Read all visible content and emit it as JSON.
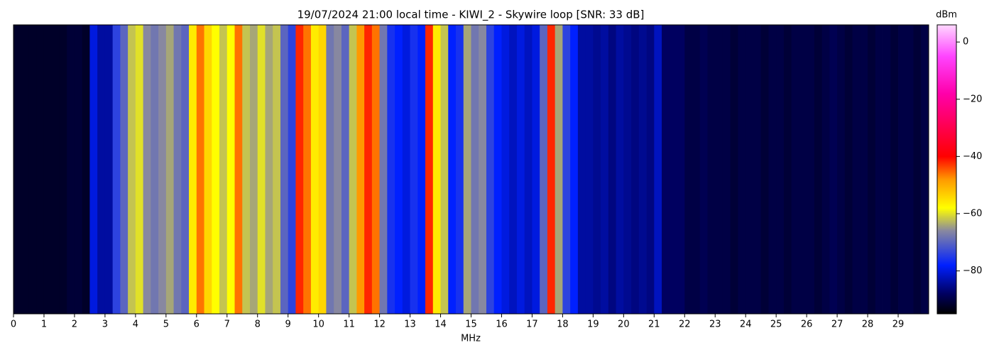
{
  "chart_data": {
    "type": "spectrum-strips",
    "title": "19/07/2024 21:00 local time - KIWI_2 - Skywire loop [SNR: 33 dB]",
    "xlabel": "MHz",
    "colorbar_label": "dBm",
    "xlim": [
      0,
      30
    ],
    "xticks": [
      0,
      1,
      2,
      3,
      4,
      5,
      6,
      7,
      8,
      9,
      10,
      11,
      12,
      13,
      14,
      15,
      16,
      17,
      18,
      19,
      20,
      21,
      22,
      23,
      24,
      25,
      26,
      27,
      28,
      29
    ],
    "zlim": [
      -95,
      6
    ],
    "zticks": [
      {
        "value": 0,
        "label": "0"
      },
      {
        "value": -20,
        "label": "−20"
      },
      {
        "value": -40,
        "label": "−40"
      },
      {
        "value": -60,
        "label": "−60"
      },
      {
        "value": -80,
        "label": "−80"
      }
    ],
    "colorscale": [
      {
        "value": -95,
        "color": "#000000"
      },
      {
        "value": -88,
        "color": "#000060"
      },
      {
        "value": -78,
        "color": "#0020ff"
      },
      {
        "value": -66,
        "color": "#8888a0"
      },
      {
        "value": -58,
        "color": "#ffff00"
      },
      {
        "value": -48,
        "color": "#ff9900"
      },
      {
        "value": -40,
        "color": "#ff0000"
      },
      {
        "value": -18,
        "color": "#ff00aa"
      },
      {
        "value": -5,
        "color": "#ff44ff"
      },
      {
        "value": 6,
        "color": "#ffd8ff"
      }
    ],
    "bins": [
      0,
      0.25,
      0.5,
      0.75,
      1,
      1.25,
      1.5,
      1.75,
      2,
      2.25,
      2.5,
      2.75,
      3,
      3.25,
      3.5,
      3.75,
      4,
      4.25,
      4.5,
      4.75,
      5,
      5.25,
      5.5,
      5.75,
      6,
      6.25,
      6.5,
      6.75,
      7,
      7.25,
      7.5,
      7.75,
      8,
      8.25,
      8.5,
      8.75,
      9,
      9.25,
      9.5,
      9.75,
      10,
      10.25,
      10.5,
      10.75,
      11,
      11.25,
      11.5,
      11.75,
      12,
      12.25,
      12.5,
      12.75,
      13,
      13.25,
      13.5,
      13.75,
      14,
      14.25,
      14.5,
      14.75,
      15,
      15.25,
      15.5,
      15.75,
      16,
      16.25,
      16.5,
      16.75,
      17,
      17.25,
      17.5,
      17.75,
      18,
      18.25,
      18.5,
      18.75,
      19,
      19.25,
      19.5,
      19.75,
      20,
      20.25,
      20.5,
      20.75,
      21,
      21.25,
      21.5,
      21.75,
      22,
      22.25,
      22.5,
      22.75,
      23,
      23.25,
      23.5,
      23.75,
      24,
      24.25,
      24.5,
      24.75,
      25,
      25.25,
      25.5,
      25.75,
      26,
      26.25,
      26.5,
      26.75,
      27,
      27.25,
      27.5,
      27.75,
      28,
      28.25,
      28.5,
      28.75,
      29,
      29.25,
      29.5,
      29.75,
      30
    ],
    "values": [
      -92,
      -92,
      -92,
      -92,
      -92,
      -92,
      -92,
      -91,
      -91,
      -92,
      -80,
      -84,
      -84,
      -74,
      -70,
      -62,
      -60,
      -66,
      -68,
      -66,
      -64,
      -68,
      -70,
      -56,
      -46,
      -54,
      -58,
      -62,
      -58,
      -46,
      -62,
      -64,
      -60,
      -64,
      -62,
      -70,
      -74,
      -42,
      -46,
      -56,
      -54,
      -68,
      -66,
      -70,
      -62,
      -48,
      -42,
      -46,
      -68,
      -76,
      -78,
      -80,
      -76,
      -78,
      -42,
      -56,
      -62,
      -78,
      -76,
      -64,
      -68,
      -66,
      -74,
      -78,
      -80,
      -82,
      -80,
      -82,
      -80,
      -70,
      -42,
      -64,
      -74,
      -78,
      -84,
      -84,
      -85,
      -84,
      -86,
      -84,
      -85,
      -86,
      -85,
      -86,
      -82,
      -88,
      -88,
      -88,
      -90,
      -90,
      -89,
      -90,
      -90,
      -90,
      -91,
      -90,
      -90,
      -90,
      -91,
      -90,
      -90,
      -91,
      -90,
      -90,
      -90,
      -91,
      -90,
      -89,
      -90,
      -91,
      -90,
      -90,
      -91,
      -90,
      -90,
      -91,
      -90,
      -90,
      -91,
      -90
    ]
  }
}
